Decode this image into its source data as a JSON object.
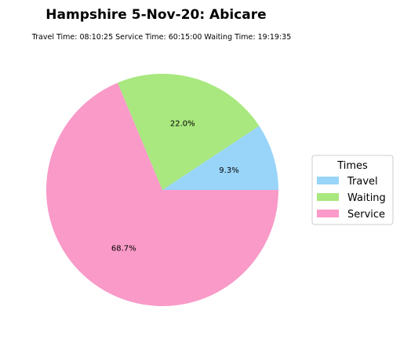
{
  "chart_data": {
    "type": "pie",
    "title": "Hampshire 5-Nov-20: Abicare",
    "subtitle": "Travel Time: 08:10:25  Service Time: 60:15:00  Waiting Time: 19:19:35",
    "slices": [
      {
        "name": "Travel",
        "value": 9.3,
        "label": "9.3%",
        "color": "#99d4f9"
      },
      {
        "name": "Waiting",
        "value": 22.0,
        "label": "22.0%",
        "color": "#a8e87e"
      },
      {
        "name": "Service",
        "value": 68.7,
        "label": "68.7%",
        "color": "#f99ac8"
      }
    ],
    "start_angle": 0,
    "direction": "counterclockwise",
    "legend": {
      "title": "Times",
      "placement": "right",
      "entries": [
        "Travel",
        "Waiting",
        "Service"
      ]
    }
  }
}
